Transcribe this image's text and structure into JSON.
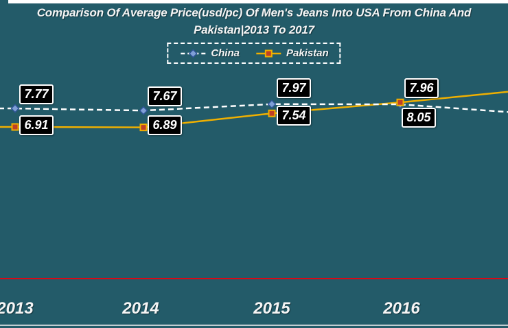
{
  "title": {
    "line1": "Comparison Of Average Price(usd/pc) Of Men's Jeans Into USA From China And",
    "line2": "Pakistan|2013 To 2017"
  },
  "legend": {
    "items": [
      {
        "label": "China"
      },
      {
        "label": "Pakistan"
      }
    ]
  },
  "x_axis": {
    "tick_labels": [
      "2013",
      "2014",
      "2015",
      "2016"
    ]
  },
  "colors": {
    "background": "#235B69",
    "title_text": "#F5F5F5",
    "china_line": "#FFFFFF",
    "pakistan_line": "#F0B000",
    "china_marker_fill": "#7F9FD6",
    "china_marker_stroke": "#2F5597",
    "pakistan_marker_fill": "#BF4026",
    "pakistan_marker_stroke": "#F0B000",
    "data_label_bg": "#000000",
    "data_label_border": "#FFFFFF",
    "divider_red": "#D90916",
    "bottom_divider": "#C2CDD1"
  },
  "chart_data": {
    "type": "line",
    "title": "Comparison Of Average Price(usd/pc) Of Men's Jeans Into USA From China And Pakistan|2013 To 2017",
    "categories": [
      "2013",
      "2014",
      "2015",
      "2016"
    ],
    "series": [
      {
        "name": "China",
        "values": [
          7.77,
          7.67,
          7.97,
          7.96
        ],
        "line_style": "dashed",
        "marker": "diamond"
      },
      {
        "name": "Pakistan",
        "values": [
          6.91,
          6.89,
          7.54,
          8.05
        ],
        "line_style": "solid",
        "marker": "square"
      }
    ],
    "data_labels": true,
    "legend_position": "top-center",
    "grid": false,
    "x_note": "both lines continue past the right edge toward 2017; the 2017 points and left edge of 2013 are cropped out of frame"
  }
}
